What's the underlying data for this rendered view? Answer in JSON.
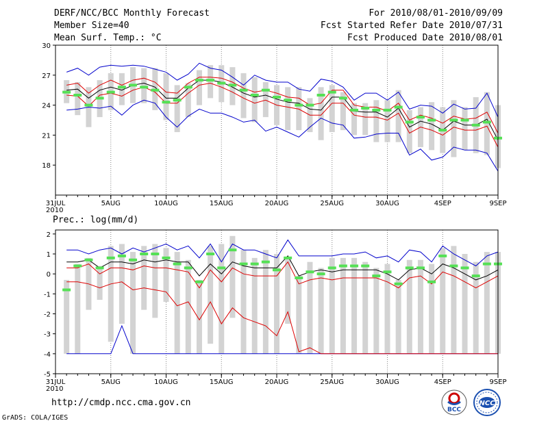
{
  "header": {
    "title": "DERF/NCC/BCC Monthly Forecast",
    "member_size": "Member Size=40",
    "panel1_var": "Mean Surf. Temp.: °C",
    "fcst_range": "For 2010/08/01-2010/09/09",
    "refer_date": "Fcst Started Refer Date 2010/07/31",
    "produced_date": "Fcst Produced Date 2010/08/01"
  },
  "footer": {
    "url": "http://cmdp.ncc.cma.gov.cn",
    "grads": "GrADS: COLA/IGES",
    "logo_bcc_text": "BCC",
    "logo_ncc_text": "NCC"
  },
  "colors": {
    "box": "#d3d3d3",
    "median": "#55e055",
    "mean": "#000000",
    "spread": "#dd0000",
    "extreme": "#0000cc"
  },
  "chart_data": [
    {
      "type": "line",
      "title": "Mean Surf. Temp.: °C",
      "ylim": [
        15,
        30
      ],
      "yticks": [
        18,
        21,
        24,
        27,
        30
      ],
      "x_labels": [
        {
          "day": 0,
          "label": "31JUL"
        },
        {
          "day": 5,
          "label": "5AUG"
        },
        {
          "day": 10,
          "label": "10AUG"
        },
        {
          "day": 15,
          "label": "15AUG"
        },
        {
          "day": 20,
          "label": "20AUG"
        },
        {
          "day": 25,
          "label": "25AUG"
        },
        {
          "day": 30,
          "label": "30AUG"
        },
        {
          "day": 35,
          "label": "4SEP"
        },
        {
          "day": 40,
          "label": "9SEP"
        }
      ],
      "year_label": "2010",
      "days": [
        1,
        2,
        3,
        4,
        5,
        6,
        7,
        8,
        9,
        10,
        11,
        12,
        13,
        14,
        15,
        16,
        17,
        18,
        19,
        20,
        21,
        22,
        23,
        24,
        25,
        26,
        27,
        28,
        29,
        30,
        31,
        32,
        33,
        34,
        35,
        36,
        37,
        38,
        39,
        40
      ],
      "box_low": [
        24.2,
        23.0,
        21.8,
        22.8,
        23.5,
        24.0,
        24.2,
        24.2,
        23.5,
        22.5,
        21.3,
        22.8,
        24.0,
        24.7,
        24.3,
        24.0,
        22.7,
        22.3,
        22.8,
        22.0,
        21.5,
        21.5,
        21.3,
        20.5,
        21.3,
        21.5,
        21.0,
        21.0,
        20.3,
        20.3,
        20.3,
        19.2,
        19.8,
        19.5,
        19.2,
        18.8,
        19.5,
        19.2,
        19.0,
        17.7
      ],
      "box_high": [
        26.5,
        26.3,
        25.8,
        26.5,
        27.2,
        27.2,
        27.8,
        27.7,
        27.7,
        27.2,
        26.0,
        26.2,
        27.5,
        28.0,
        28.0,
        27.8,
        27.2,
        26.8,
        26.3,
        26.0,
        25.8,
        25.8,
        24.7,
        25.8,
        26.0,
        25.3,
        24.2,
        24.2,
        24.5,
        24.5,
        25.5,
        23.5,
        23.8,
        24.3,
        23.8,
        24.5,
        23.8,
        24.8,
        25.3,
        24.0
      ],
      "median": [
        25.3,
        25.0,
        24.0,
        24.7,
        25.3,
        25.8,
        26.0,
        25.8,
        25.5,
        24.3,
        24.5,
        25.8,
        26.5,
        26.5,
        26.2,
        26.0,
        25.5,
        25.0,
        25.5,
        24.8,
        24.5,
        24.0,
        24.0,
        25.0,
        25.3,
        24.7,
        23.5,
        23.7,
        23.5,
        23.5,
        23.8,
        22.3,
        22.8,
        22.5,
        21.5,
        22.5,
        22.5,
        22.0,
        22.3,
        20.7
      ],
      "mean": [
        25.5,
        25.6,
        24.7,
        25.5,
        25.8,
        25.5,
        26.0,
        26.2,
        25.8,
        24.7,
        24.7,
        25.7,
        26.5,
        26.5,
        26.3,
        25.8,
        25.2,
        24.8,
        25.0,
        24.6,
        24.3,
        24.2,
        23.6,
        23.5,
        24.8,
        24.8,
        23.4,
        23.3,
        23.3,
        22.8,
        23.7,
        21.8,
        22.4,
        22.1,
        21.5,
        22.4,
        22.0,
        22.0,
        22.6,
        20.5
      ],
      "upper": [
        26.0,
        26.2,
        25.2,
        26.0,
        26.5,
        26.0,
        26.5,
        26.7,
        26.3,
        25.3,
        25.2,
        26.2,
        26.8,
        26.8,
        26.7,
        26.3,
        25.7,
        25.3,
        25.5,
        25.2,
        24.8,
        24.7,
        24.0,
        24.2,
        25.5,
        25.5,
        24.0,
        23.8,
        23.8,
        23.4,
        24.2,
        22.5,
        23.0,
        22.7,
        22.2,
        22.9,
        22.6,
        22.7,
        23.3,
        21.2
      ],
      "lower": [
        25.0,
        24.9,
        23.9,
        25.0,
        25.2,
        24.9,
        25.5,
        25.8,
        25.3,
        24.2,
        24.2,
        25.2,
        26.0,
        26.2,
        25.8,
        25.3,
        24.7,
        24.2,
        24.5,
        24.0,
        23.8,
        23.6,
        23.0,
        23.0,
        24.2,
        24.2,
        23.0,
        22.8,
        22.8,
        22.5,
        23.2,
        21.2,
        21.8,
        21.5,
        21.0,
        21.8,
        21.5,
        21.5,
        21.9,
        19.8
      ],
      "max": [
        27.3,
        27.7,
        27.0,
        27.8,
        28.0,
        27.9,
        28.0,
        27.9,
        27.6,
        27.3,
        26.5,
        27.1,
        28.2,
        27.7,
        27.5,
        26.8,
        26.0,
        27.0,
        26.5,
        26.3,
        26.3,
        25.6,
        25.4,
        26.6,
        26.4,
        25.8,
        24.5,
        25.2,
        25.2,
        24.5,
        25.3,
        23.6,
        24.0,
        23.9,
        23.2,
        24.1,
        23.6,
        23.7,
        25.2,
        22.8
      ],
      "min": [
        23.5,
        23.6,
        23.8,
        23.7,
        23.9,
        23.0,
        24.0,
        24.5,
        24.2,
        22.8,
        21.8,
        22.9,
        23.6,
        23.2,
        23.2,
        22.8,
        22.3,
        22.5,
        21.4,
        21.8,
        21.3,
        20.8,
        21.8,
        22.7,
        22.2,
        22.0,
        20.7,
        20.8,
        21.1,
        21.2,
        21.2,
        19.0,
        19.6,
        18.5,
        18.8,
        19.8,
        19.5,
        19.5,
        19.2,
        17.4
      ]
    },
    {
      "type": "line",
      "title": "Prec.: log(mm/d)",
      "ylim": [
        -5,
        2.2
      ],
      "yticks": [
        -5,
        -4,
        -3,
        -2,
        -1,
        0,
        1,
        2
      ],
      "x_labels": [
        {
          "day": 0,
          "label": "31JUL"
        },
        {
          "day": 5,
          "label": "5AUG"
        },
        {
          "day": 10,
          "label": "10AUG"
        },
        {
          "day": 15,
          "label": "15AUG"
        },
        {
          "day": 20,
          "label": "20AUG"
        },
        {
          "day": 25,
          "label": "25AUG"
        },
        {
          "day": 30,
          "label": "30AUG"
        },
        {
          "day": 35,
          "label": "4SEP"
        },
        {
          "day": 40,
          "label": "9SEP"
        }
      ],
      "year_label": "2010",
      "days": [
        1,
        2,
        3,
        4,
        5,
        6,
        7,
        8,
        9,
        10,
        11,
        12,
        13,
        14,
        15,
        16,
        17,
        18,
        19,
        20,
        21,
        22,
        23,
        24,
        25,
        26,
        27,
        28,
        29,
        30,
        31,
        32,
        33,
        34,
        35,
        36,
        37,
        38,
        39,
        40
      ],
      "box_low": [
        -4.0,
        -4.0,
        -1.8,
        -1.3,
        -3.4,
        -2.5,
        -4.0,
        -1.8,
        -2.2,
        -1.4,
        -4.0,
        -4.0,
        -4.0,
        -3.5,
        -4.0,
        -2.2,
        -4.0,
        -4.0,
        -4.0,
        -4.0,
        -2.5,
        -4.0,
        -4.0,
        -4.0,
        -4.0,
        -4.0,
        -4.0,
        -4.0,
        -4.0,
        -4.0,
        -4.0,
        -4.0,
        -4.0,
        -4.0,
        -4.0,
        -4.0,
        -4.0,
        -4.0,
        -4.0,
        -4.0
      ],
      "box_high": [
        -0.3,
        0.5,
        0.8,
        0.4,
        1.4,
        1.5,
        1.1,
        1.4,
        1.5,
        1.3,
        1.1,
        0.7,
        -0.3,
        1.4,
        1.5,
        1.9,
        1.2,
        0.8,
        1.2,
        1.0,
        0.8,
        -0.1,
        0.6,
        0.3,
        0.8,
        0.8,
        0.8,
        0.6,
        0.3,
        0.5,
        -0.3,
        0.7,
        0.7,
        0.5,
        1.3,
        1.4,
        1.0,
        0.6,
        1.1,
        1.1
      ],
      "median": [
        -0.8,
        0.4,
        0.7,
        0.3,
        0.8,
        0.9,
        0.7,
        1.0,
        1.0,
        0.8,
        0.5,
        0.3,
        -0.4,
        1.0,
        0.3,
        1.2,
        0.5,
        0.5,
        0.6,
        0.2,
        0.8,
        -0.2,
        0.1,
        0.0,
        0.3,
        0.4,
        0.4,
        0.4,
        -0.1,
        0.1,
        -0.5,
        0.3,
        0.3,
        -0.4,
        0.9,
        0.4,
        0.3,
        -0.1,
        0.5,
        0.5
      ],
      "mean": [
        0.6,
        0.6,
        0.7,
        0.3,
        0.6,
        0.6,
        0.5,
        0.7,
        0.6,
        0.7,
        0.6,
        0.6,
        -0.1,
        0.5,
        0.0,
        0.6,
        0.4,
        0.3,
        0.3,
        0.3,
        0.9,
        -0.1,
        0.1,
        0.2,
        0.1,
        0.2,
        0.2,
        0.2,
        0.2,
        0.0,
        -0.3,
        0.2,
        0.3,
        0.0,
        0.5,
        0.3,
        0.0,
        -0.3,
        -0.1,
        0.2
      ],
      "upper": [
        0.3,
        0.3,
        0.5,
        0.0,
        0.3,
        0.3,
        0.2,
        0.4,
        0.3,
        0.3,
        0.2,
        0.1,
        -0.7,
        0.2,
        -0.4,
        0.3,
        0.0,
        -0.1,
        -0.1,
        -0.1,
        0.6,
        -0.5,
        -0.3,
        -0.2,
        -0.3,
        -0.2,
        -0.2,
        -0.2,
        -0.2,
        -0.4,
        -0.7,
        -0.2,
        -0.1,
        -0.5,
        0.1,
        -0.1,
        -0.4,
        -0.7,
        -0.4,
        -0.1
      ],
      "lower": [
        -0.4,
        -0.4,
        -0.5,
        -0.7,
        -0.5,
        -0.4,
        -0.8,
        -0.7,
        -0.8,
        -0.9,
        -1.6,
        -1.4,
        -2.3,
        -1.4,
        -2.5,
        -1.7,
        -2.2,
        -2.4,
        -2.6,
        -3.1,
        -1.9,
        -3.9,
        -3.7,
        -4.0,
        -4.0,
        -4.0,
        -4.0,
        -4.0,
        -4.0,
        -4.0,
        -4.0,
        -4.0,
        -4.0,
        -4.0,
        -4.0,
        -4.0,
        -4.0,
        -4.0,
        -4.0,
        -4.0
      ],
      "max": [
        1.2,
        1.2,
        1.0,
        1.2,
        1.3,
        1.0,
        1.3,
        1.1,
        1.3,
        1.5,
        1.2,
        1.4,
        0.8,
        1.5,
        0.6,
        1.5,
        1.2,
        1.2,
        1.0,
        0.8,
        1.7,
        0.9,
        0.9,
        0.9,
        0.9,
        1.0,
        1.0,
        1.1,
        0.8,
        0.9,
        0.6,
        1.2,
        1.1,
        0.6,
        1.4,
        1.0,
        0.7,
        0.4,
        0.9,
        1.1
      ],
      "min": [
        -4.0,
        -4.0,
        -4.0,
        -4.0,
        -4.0,
        -2.6,
        -4.0,
        -4.0,
        -4.0,
        -4.0,
        -4.0,
        -4.0,
        -4.0,
        -4.0,
        -4.0,
        -4.0,
        -4.0,
        -4.0,
        -4.0,
        -4.0,
        -4.0,
        -4.0,
        -4.0,
        -4.0,
        -4.0,
        -4.0,
        -4.0,
        -4.0,
        -4.0,
        -4.0,
        -4.0,
        -4.0,
        -4.0,
        -4.0,
        -4.0,
        -4.0,
        -4.0,
        -4.0,
        -4.0,
        -4.0
      ]
    }
  ]
}
